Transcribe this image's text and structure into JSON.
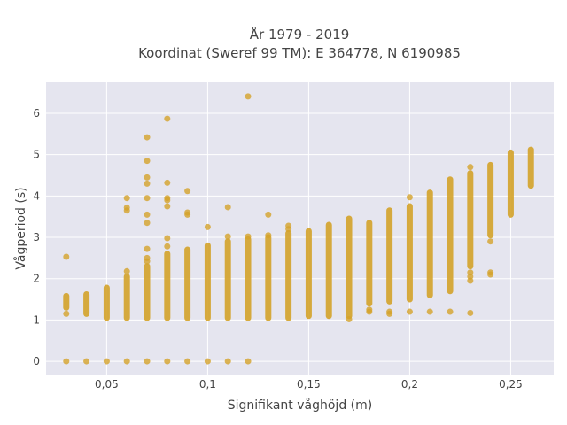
{
  "chart_data": {
    "type": "scatter",
    "title": "År 1979 - 2019",
    "subtitle": "Koordinat (Sweref 99 TM): E 364778, N 6190985",
    "xlabel": "Signifikant våghöjd (m)",
    "ylabel": "Vågperiod (s)",
    "xlim": [
      0.02,
      0.2713
    ],
    "ylim": [
      -0.32,
      6.75
    ],
    "x_ticks": [
      0.05,
      0.1,
      0.15,
      0.2,
      0.25
    ],
    "x_tick_labels": [
      "0,05",
      "0,1",
      "0,15",
      "0,2",
      "0,25"
    ],
    "y_ticks": [
      0,
      1,
      2,
      3,
      4,
      5,
      6
    ],
    "y_tick_labels": [
      "0",
      "1",
      "2",
      "3",
      "4",
      "5",
      "6"
    ],
    "grid": true,
    "legend": "none",
    "colors": {
      "marker": "#d4a32a",
      "plot_bg": "#e5e5ef",
      "grid": "#ffffff",
      "text": "#444444"
    },
    "ranges": [
      {
        "x": 0.03,
        "ymin": 1.3,
        "ymax": 1.58
      },
      {
        "x": 0.04,
        "ymin": 1.15,
        "ymax": 1.62
      },
      {
        "x": 0.05,
        "ymin": 1.05,
        "ymax": 1.78
      },
      {
        "x": 0.06,
        "ymin": 1.05,
        "ymax": 2.05
      },
      {
        "x": 0.07,
        "ymin": 1.05,
        "ymax": 2.3
      },
      {
        "x": 0.08,
        "ymin": 1.05,
        "ymax": 2.6
      },
      {
        "x": 0.09,
        "ymin": 1.05,
        "ymax": 2.7
      },
      {
        "x": 0.1,
        "ymin": 1.05,
        "ymax": 2.8
      },
      {
        "x": 0.11,
        "ymin": 1.05,
        "ymax": 2.9
      },
      {
        "x": 0.12,
        "ymin": 1.05,
        "ymax": 2.95
      },
      {
        "x": 0.13,
        "ymin": 1.05,
        "ymax": 3.0
      },
      {
        "x": 0.14,
        "ymin": 1.05,
        "ymax": 3.1
      },
      {
        "x": 0.15,
        "ymin": 1.1,
        "ymax": 3.15
      },
      {
        "x": 0.16,
        "ymin": 1.1,
        "ymax": 3.3
      },
      {
        "x": 0.17,
        "ymin": 1.1,
        "ymax": 3.45
      },
      {
        "x": 0.18,
        "ymin": 1.4,
        "ymax": 3.35
      },
      {
        "x": 0.19,
        "ymin": 1.45,
        "ymax": 3.65
      },
      {
        "x": 0.2,
        "ymin": 1.5,
        "ymax": 3.75
      },
      {
        "x": 0.21,
        "ymin": 1.6,
        "ymax": 4.08
      },
      {
        "x": 0.22,
        "ymin": 1.7,
        "ymax": 4.4
      },
      {
        "x": 0.23,
        "ymin": 2.3,
        "ymax": 4.55
      },
      {
        "x": 0.24,
        "ymin": 3.05,
        "ymax": 4.75
      },
      {
        "x": 0.25,
        "ymin": 3.55,
        "ymax": 5.05
      },
      {
        "x": 0.26,
        "ymin": 4.25,
        "ymax": 5.12
      }
    ],
    "points": [
      {
        "x": 0.03,
        "y": 0
      },
      {
        "x": 0.04,
        "y": 0
      },
      {
        "x": 0.05,
        "y": 0
      },
      {
        "x": 0.06,
        "y": 0
      },
      {
        "x": 0.07,
        "y": 0
      },
      {
        "x": 0.08,
        "y": 0
      },
      {
        "x": 0.09,
        "y": 0
      },
      {
        "x": 0.1,
        "y": 0
      },
      {
        "x": 0.11,
        "y": 0
      },
      {
        "x": 0.12,
        "y": 0
      },
      {
        "x": 0.03,
        "y": 2.53
      },
      {
        "x": 0.03,
        "y": 1.15
      },
      {
        "x": 0.06,
        "y": 2.18
      },
      {
        "x": 0.06,
        "y": 3.65
      },
      {
        "x": 0.06,
        "y": 3.72
      },
      {
        "x": 0.06,
        "y": 3.95
      },
      {
        "x": 0.07,
        "y": 5.42
      },
      {
        "x": 0.07,
        "y": 4.85
      },
      {
        "x": 0.07,
        "y": 4.45
      },
      {
        "x": 0.07,
        "y": 4.3
      },
      {
        "x": 0.07,
        "y": 3.95
      },
      {
        "x": 0.07,
        "y": 3.55
      },
      {
        "x": 0.07,
        "y": 3.35
      },
      {
        "x": 0.07,
        "y": 2.72
      },
      {
        "x": 0.07,
        "y": 2.5
      },
      {
        "x": 0.07,
        "y": 2.42
      },
      {
        "x": 0.08,
        "y": 5.87
      },
      {
        "x": 0.08,
        "y": 4.32
      },
      {
        "x": 0.08,
        "y": 3.95
      },
      {
        "x": 0.08,
        "y": 3.9
      },
      {
        "x": 0.08,
        "y": 3.75
      },
      {
        "x": 0.08,
        "y": 2.98
      },
      {
        "x": 0.08,
        "y": 2.78
      },
      {
        "x": 0.09,
        "y": 4.12
      },
      {
        "x": 0.09,
        "y": 3.6
      },
      {
        "x": 0.09,
        "y": 3.55
      },
      {
        "x": 0.1,
        "y": 3.25
      },
      {
        "x": 0.11,
        "y": 3.73
      },
      {
        "x": 0.11,
        "y": 3.02
      },
      {
        "x": 0.12,
        "y": 6.41
      },
      {
        "x": 0.12,
        "y": 3.02
      },
      {
        "x": 0.13,
        "y": 3.55
      },
      {
        "x": 0.13,
        "y": 3.05
      },
      {
        "x": 0.14,
        "y": 3.28
      },
      {
        "x": 0.14,
        "y": 3.2
      },
      {
        "x": 0.17,
        "y": 1.02
      },
      {
        "x": 0.18,
        "y": 1.2
      },
      {
        "x": 0.18,
        "y": 1.25
      },
      {
        "x": 0.19,
        "y": 1.15
      },
      {
        "x": 0.19,
        "y": 1.2
      },
      {
        "x": 0.2,
        "y": 1.2
      },
      {
        "x": 0.2,
        "y": 3.97
      },
      {
        "x": 0.21,
        "y": 1.2
      },
      {
        "x": 0.22,
        "y": 1.2
      },
      {
        "x": 0.23,
        "y": 1.17
      },
      {
        "x": 0.23,
        "y": 1.95
      },
      {
        "x": 0.23,
        "y": 2.05
      },
      {
        "x": 0.23,
        "y": 2.15
      },
      {
        "x": 0.23,
        "y": 4.7
      },
      {
        "x": 0.24,
        "y": 2.1
      },
      {
        "x": 0.24,
        "y": 2.15
      },
      {
        "x": 0.24,
        "y": 2.9
      }
    ]
  }
}
